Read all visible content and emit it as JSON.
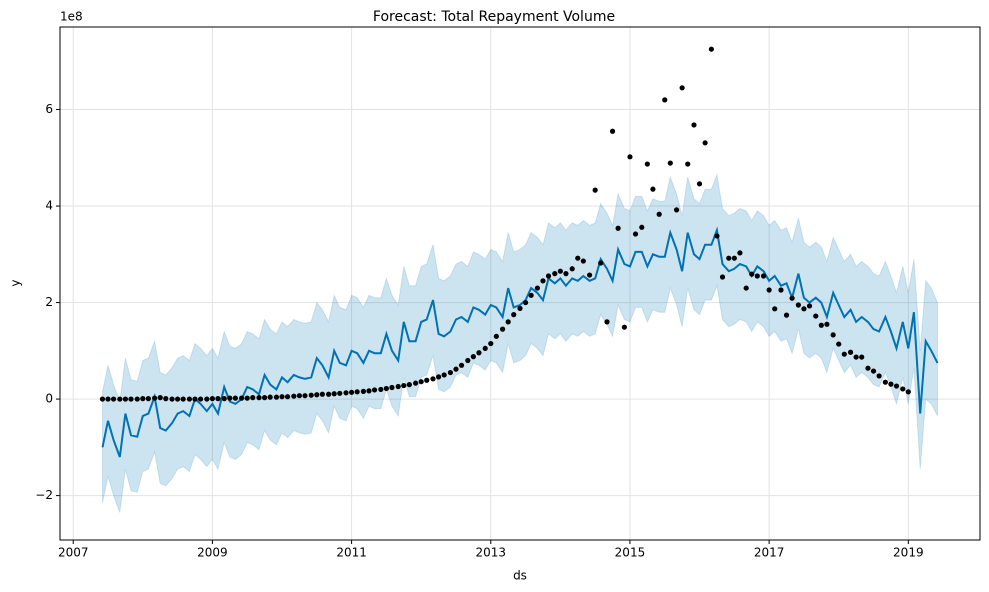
{
  "chart_data": {
    "type": "line",
    "title": "Forecast: Total Repayment Volume",
    "xlabel": "ds",
    "ylabel": "y",
    "offset_label": "1e8",
    "color": "#0072B2",
    "band_color": "#0072B2",
    "point_color": "#000000",
    "grid": true,
    "xlim": [
      2006.81,
      2020.03
    ],
    "ylim": [
      -2.92,
      7.71
    ],
    "xticks": [
      2007,
      2009,
      2011,
      2013,
      2015,
      2017,
      2019
    ],
    "yticks": [
      {
        "value": -2,
        "label": "−2"
      },
      0,
      2,
      4,
      6
    ],
    "x": [
      2007.42,
      2007.5,
      2007.58,
      2007.67,
      2007.75,
      2007.83,
      2007.92,
      2008,
      2008.08,
      2008.17,
      2008.25,
      2008.33,
      2008.42,
      2008.5,
      2008.58,
      2008.67,
      2008.75,
      2008.83,
      2008.92,
      2009,
      2009.08,
      2009.17,
      2009.25,
      2009.33,
      2009.42,
      2009.5,
      2009.58,
      2009.67,
      2009.75,
      2009.83,
      2009.92,
      2010,
      2010.08,
      2010.17,
      2010.25,
      2010.33,
      2010.42,
      2010.5,
      2010.58,
      2010.67,
      2010.75,
      2010.83,
      2010.92,
      2011,
      2011.08,
      2011.17,
      2011.25,
      2011.33,
      2011.42,
      2011.5,
      2011.58,
      2011.67,
      2011.75,
      2011.83,
      2011.92,
      2012,
      2012.08,
      2012.17,
      2012.25,
      2012.33,
      2012.42,
      2012.5,
      2012.58,
      2012.67,
      2012.75,
      2012.83,
      2012.92,
      2013,
      2013.08,
      2013.17,
      2013.25,
      2013.33,
      2013.42,
      2013.5,
      2013.58,
      2013.67,
      2013.75,
      2013.83,
      2013.92,
      2014,
      2014.08,
      2014.17,
      2014.25,
      2014.33,
      2014.42,
      2014.5,
      2014.58,
      2014.67,
      2014.75,
      2014.83,
      2014.92,
      2015,
      2015.08,
      2015.17,
      2015.25,
      2015.33,
      2015.42,
      2015.5,
      2015.58,
      2015.67,
      2015.75,
      2015.83,
      2015.92,
      2016,
      2016.08,
      2016.17,
      2016.25,
      2016.33,
      2016.42,
      2016.5,
      2016.58,
      2016.67,
      2016.75,
      2016.83,
      2016.92,
      2017,
      2017.08,
      2017.17,
      2017.25,
      2017.33,
      2017.42,
      2017.5,
      2017.58,
      2017.67,
      2017.75,
      2017.83,
      2017.92,
      2018,
      2018.08,
      2018.17,
      2018.25,
      2018.33,
      2018.42,
      2018.5,
      2018.58,
      2018.67,
      2018.75,
      2018.83,
      2018.92,
      2019,
      2019.08,
      2019.17,
      2019.25,
      2019.33,
      2019.42
    ],
    "values": [
      0,
      0,
      0,
      0,
      0,
      0,
      0,
      0.01,
      0.01,
      0.02,
      0.03,
      0.01,
      0,
      0,
      0,
      0,
      0,
      0,
      0,
      0.01,
      0.01,
      0.01,
      0.02,
      0.02,
      0.02,
      0.02,
      0.03,
      0.03,
      0.03,
      0.04,
      0.04,
      0.05,
      0.05,
      0.06,
      0.07,
      0.07,
      0.08,
      0.09,
      0.1,
      0.1,
      0.11,
      0.12,
      0.13,
      0.14,
      0.15,
      0.16,
      0.17,
      0.19,
      0.2,
      0.22,
      0.24,
      0.26,
      0.28,
      0.3,
      0.33,
      0.36,
      0.39,
      0.42,
      0.46,
      0.5,
      0.55,
      0.62,
      0.7,
      0.8,
      0.88,
      0.96,
      1.05,
      1.15,
      1.3,
      1.45,
      1.6,
      1.75,
      1.88,
      2.0,
      2.15,
      2.3,
      2.45,
      2.55,
      2.6,
      2.65,
      2.6,
      2.7,
      2.92,
      2.86,
      2.57,
      4.33,
      2.82,
      1.6,
      5.55,
      3.54,
      1.49,
      5.02,
      3.42,
      3.56,
      4.87,
      4.35,
      3.83,
      6.2,
      4.89,
      3.92,
      6.45,
      4.87,
      5.68,
      4.46,
      5.31,
      7.25,
      3.38,
      2.53,
      2.92,
      2.92,
      3.03,
      2.3,
      2.59,
      2.55,
      2.55,
      2.26,
      1.87,
      2.26,
      1.74,
      2.09,
      1.95,
      1.87,
      1.93,
      1.72,
      1.53,
      1.55,
      1.33,
      1.14,
      0.93,
      0.97,
      0.87,
      0.87,
      0.64,
      0.58,
      0.48,
      0.35,
      0.31,
      0.27,
      0.21,
      0.15,
      null,
      null,
      null,
      null,
      null
    ],
    "yhat": [
      -1.0,
      -0.45,
      -0.85,
      -1.2,
      -0.3,
      -0.75,
      -0.78,
      -0.35,
      -0.3,
      0.05,
      -0.6,
      -0.65,
      -0.5,
      -0.3,
      -0.25,
      -0.35,
      0.0,
      -0.1,
      -0.25,
      -0.1,
      -0.3,
      0.25,
      -0.05,
      -0.1,
      0.0,
      0.25,
      0.2,
      0.1,
      0.5,
      0.3,
      0.2,
      0.45,
      0.35,
      0.5,
      0.45,
      0.42,
      0.45,
      0.85,
      0.7,
      0.45,
      1.0,
      0.75,
      0.7,
      1.0,
      0.95,
      0.75,
      1.0,
      0.95,
      0.95,
      1.35,
      1.0,
      0.8,
      1.6,
      1.2,
      1.2,
      1.6,
      1.65,
      2.05,
      1.35,
      1.3,
      1.4,
      1.65,
      1.7,
      1.6,
      1.9,
      1.85,
      1.75,
      1.95,
      1.9,
      1.7,
      2.3,
      1.9,
      1.95,
      2.05,
      2.3,
      2.2,
      2.05,
      2.5,
      2.4,
      2.5,
      2.35,
      2.5,
      2.45,
      2.55,
      2.45,
      2.5,
      2.9,
      2.7,
      2.45,
      3.1,
      2.8,
      2.75,
      3.05,
      3.05,
      2.75,
      3.0,
      2.95,
      2.95,
      3.45,
      3.1,
      2.65,
      3.45,
      3.0,
      2.9,
      3.2,
      3.2,
      3.5,
      2.8,
      2.65,
      2.7,
      2.8,
      2.75,
      2.55,
      2.75,
      2.65,
      2.45,
      2.55,
      2.35,
      2.4,
      2.1,
      2.6,
      2.1,
      2.0,
      2.1,
      2.0,
      1.7,
      2.2,
      1.95,
      1.7,
      1.85,
      1.6,
      1.7,
      1.6,
      1.45,
      1.4,
      1.7,
      1.4,
      1.05,
      1.6,
      1.05,
      1.8,
      -0.3,
      1.2,
      1.0,
      0.75
    ],
    "yhat_upper": [
      0.15,
      0.7,
      0.3,
      -0.05,
      0.85,
      0.4,
      0.37,
      0.8,
      0.85,
      1.2,
      0.55,
      0.5,
      0.65,
      0.85,
      0.9,
      0.8,
      1.15,
      1.05,
      0.9,
      1.05,
      0.85,
      1.4,
      1.1,
      1.05,
      1.15,
      1.4,
      1.35,
      1.25,
      1.65,
      1.45,
      1.35,
      1.6,
      1.5,
      1.65,
      1.6,
      1.57,
      1.6,
      2.0,
      1.85,
      1.6,
      2.15,
      1.9,
      1.85,
      2.15,
      2.1,
      1.9,
      2.15,
      2.1,
      2.1,
      2.5,
      2.15,
      1.95,
      2.75,
      2.35,
      2.35,
      2.75,
      2.8,
      3.2,
      2.5,
      2.45,
      2.55,
      2.8,
      2.85,
      2.75,
      3.05,
      3.0,
      2.9,
      3.1,
      3.05,
      2.85,
      3.45,
      3.05,
      3.1,
      3.2,
      3.45,
      3.35,
      3.2,
      3.65,
      3.55,
      3.65,
      3.5,
      3.65,
      3.6,
      3.7,
      3.6,
      3.65,
      4.05,
      3.85,
      3.6,
      4.25,
      3.95,
      3.9,
      4.2,
      4.2,
      3.9,
      4.15,
      4.1,
      4.1,
      4.6,
      4.25,
      3.8,
      4.6,
      4.15,
      4.05,
      4.35,
      4.35,
      4.65,
      3.95,
      3.8,
      3.85,
      3.95,
      3.9,
      3.7,
      3.9,
      3.8,
      3.6,
      3.7,
      3.5,
      3.55,
      3.25,
      3.75,
      3.25,
      3.15,
      3.25,
      3.15,
      2.85,
      3.35,
      3.1,
      2.85,
      3.0,
      2.75,
      2.85,
      2.75,
      2.6,
      2.55,
      2.85,
      2.55,
      2.2,
      2.75,
      2.2,
      2.9,
      1.0,
      2.45,
      2.3,
      2.0
    ],
    "yhat_lower": [
      -2.15,
      -1.6,
      -2.0,
      -2.35,
      -1.45,
      -1.9,
      -1.93,
      -1.5,
      -1.45,
      -1.1,
      -1.75,
      -1.8,
      -1.65,
      -1.45,
      -1.4,
      -1.5,
      -1.15,
      -1.25,
      -1.4,
      -1.25,
      -1.45,
      -0.9,
      -1.2,
      -1.25,
      -1.15,
      -0.9,
      -0.95,
      -1.05,
      -0.65,
      -0.85,
      -0.95,
      -0.7,
      -0.8,
      -0.65,
      -0.7,
      -0.73,
      -0.7,
      -0.3,
      -0.45,
      -0.7,
      -0.15,
      -0.4,
      -0.45,
      -0.15,
      -0.2,
      -0.4,
      -0.15,
      -0.2,
      -0.2,
      0.2,
      -0.15,
      -0.35,
      0.45,
      0.05,
      0.05,
      0.45,
      0.5,
      0.9,
      0.2,
      0.15,
      0.25,
      0.5,
      0.55,
      0.45,
      0.75,
      0.7,
      0.6,
      0.8,
      0.75,
      0.55,
      1.15,
      0.75,
      0.8,
      0.9,
      1.15,
      1.05,
      0.9,
      1.35,
      1.25,
      1.35,
      1.2,
      1.35,
      1.3,
      1.4,
      1.3,
      1.35,
      1.75,
      1.55,
      1.3,
      1.95,
      1.65,
      1.6,
      1.9,
      1.9,
      1.6,
      1.85,
      1.8,
      1.8,
      2.3,
      1.95,
      1.5,
      2.3,
      1.85,
      1.75,
      2.05,
      2.05,
      2.35,
      1.65,
      1.5,
      1.55,
      1.65,
      1.6,
      1.4,
      1.6,
      1.5,
      1.3,
      1.4,
      1.2,
      1.25,
      0.95,
      1.45,
      0.95,
      0.85,
      0.95,
      0.85,
      0.55,
      1.05,
      0.8,
      0.55,
      0.7,
      0.45,
      0.55,
      0.45,
      0.3,
      0.25,
      0.55,
      0.25,
      -0.1,
      0.45,
      -0.1,
      0.65,
      -1.45,
      0.0,
      -0.1,
      -0.35
    ]
  }
}
